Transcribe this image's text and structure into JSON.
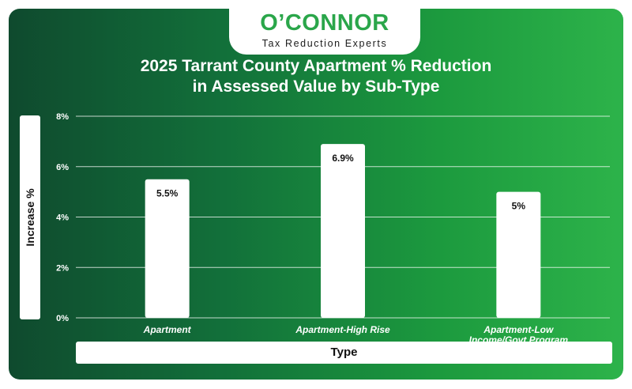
{
  "brand": {
    "name_prefix": "O",
    "name_apostrophe": "’",
    "name_suffix": "CONNOR",
    "tagline": "Tax Reduction Experts",
    "color": "#2aa64a"
  },
  "chart_data": {
    "type": "bar",
    "title_line1": "2025 Tarrant County Apartment % Reduction",
    "title_line2": "in Assessed Value by Sub-Type",
    "xlabel": "Type",
    "ylabel": "Increase %",
    "ylim": [
      0,
      8
    ],
    "yticks": [
      0,
      2,
      4,
      6,
      8
    ],
    "ytick_labels": [
      "0%",
      "2%",
      "4%",
      "6%",
      "8%"
    ],
    "categories": [
      [
        "Apartment"
      ],
      [
        "Apartment-High Rise"
      ],
      [
        "Apartment-Low",
        "Income/Govt Program"
      ]
    ],
    "values": [
      5.5,
      6.9,
      5
    ],
    "data_labels": [
      "5.5%",
      "6.9%",
      "5%"
    ],
    "grid": true,
    "bar_color": "#ffffff"
  }
}
